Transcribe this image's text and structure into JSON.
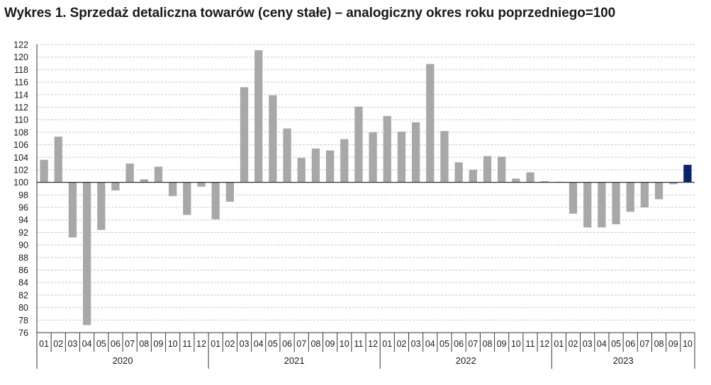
{
  "title": "Wykres 1. Sprzedaż detaliczna towarów (ceny stałe) – analogiczny okres roku poprzedniego=100",
  "colors": {
    "bar": "#a8a8a8",
    "highlight": "#0b2270",
    "grid": "#c8c8c8",
    "axis": "#333333"
  },
  "chart_data": {
    "type": "bar",
    "title": "Wykres 1. Sprzedaż detaliczna towarów (ceny stałe) – analogiczny okres roku poprzedniego=100",
    "baseline": 100,
    "ylim": [
      76,
      122
    ],
    "yticks": [
      76,
      78,
      80,
      82,
      84,
      86,
      88,
      90,
      92,
      94,
      96,
      98,
      100,
      102,
      104,
      106,
      108,
      110,
      112,
      114,
      116,
      118,
      120,
      122
    ],
    "grid": true,
    "years": [
      {
        "label": "2020",
        "months": 12
      },
      {
        "label": "2021",
        "months": 12
      },
      {
        "label": "2022",
        "months": 12
      },
      {
        "label": "2023",
        "months": 10
      }
    ],
    "categories": [
      "01",
      "02",
      "03",
      "04",
      "05",
      "06",
      "07",
      "08",
      "09",
      "10",
      "11",
      "12",
      "01",
      "02",
      "03",
      "04",
      "05",
      "06",
      "07",
      "08",
      "09",
      "10",
      "11",
      "12",
      "01",
      "02",
      "03",
      "04",
      "05",
      "06",
      "07",
      "08",
      "09",
      "10",
      "11",
      "12",
      "01",
      "02",
      "03",
      "04",
      "05",
      "06",
      "07",
      "08",
      "09",
      "10"
    ],
    "values": [
      103.6,
      107.3,
      91.2,
      77.2,
      92.4,
      98.7,
      103.0,
      100.5,
      102.5,
      97.8,
      94.8,
      99.3,
      94.1,
      96.9,
      115.2,
      121.1,
      113.9,
      108.6,
      103.9,
      105.4,
      105.1,
      106.9,
      112.1,
      108.0,
      110.6,
      108.1,
      109.6,
      118.9,
      108.2,
      103.2,
      102.0,
      104.2,
      104.1,
      100.6,
      101.6,
      100.2,
      100.1,
      95.0,
      92.8,
      92.8,
      93.3,
      95.3,
      96.0,
      97.3,
      99.7,
      102.8
    ],
    "highlight_index": 45
  }
}
